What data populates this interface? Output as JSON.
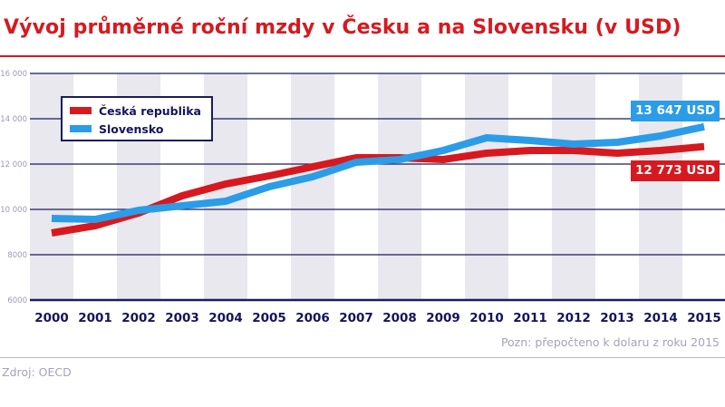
{
  "title": "Vývoj průměrné roční mzdy v Česku a na Slovensku (v USD)",
  "colors": {
    "title": "#d7191f",
    "cz": "#d7191f",
    "sk": "#2b9ce8",
    "axis": "#1c1c5e",
    "band": "#e8e8ee"
  },
  "legend": {
    "items": [
      {
        "label": "Česká republika",
        "color": "#d7191f"
      },
      {
        "label": "Slovensko",
        "color": "#2b9ce8"
      }
    ]
  },
  "end_labels": {
    "sk": "13 647 USD",
    "cz": "12 773 USD"
  },
  "note": "Pozn: přepočteno k dolaru z roku 2015",
  "source": "Zdroj: OECD",
  "chart_data": {
    "type": "line",
    "title": "Vývoj průměrné roční mzdy v Česku a na Slovensku (v USD)",
    "xlabel": "",
    "ylabel": "",
    "x": [
      "2000",
      "2001",
      "2002",
      "2003",
      "2004",
      "2005",
      "2006",
      "2007",
      "2008",
      "2009",
      "2010",
      "2011",
      "2012",
      "2013",
      "2014",
      "2015"
    ],
    "y_ticks": [
      "6000",
      "8000",
      "10 000",
      "12 000",
      "14 000",
      "16 000"
    ],
    "ylim": [
      6000,
      16000
    ],
    "grid": true,
    "legend_position": "upper-left",
    "series": [
      {
        "name": "Česká republika",
        "color": "#d7191f",
        "values": [
          8960,
          9280,
          9840,
          10600,
          11120,
          11480,
          11880,
          12280,
          12280,
          12200,
          12480,
          12600,
          12600,
          12480,
          12600,
          12773
        ]
      },
      {
        "name": "Slovensko",
        "color": "#2b9ce8",
        "values": [
          9600,
          9560,
          9960,
          10160,
          10360,
          11000,
          11440,
          12080,
          12200,
          12600,
          13160,
          13040,
          12880,
          12960,
          13240,
          13647
        ]
      }
    ],
    "annotations": [
      {
        "text": "13 647 USD",
        "series": "Slovensko",
        "x": "2015"
      },
      {
        "text": "12 773 USD",
        "series": "Česká republika",
        "x": "2015"
      },
      {
        "text": "Pozn: přepočteno k dolaru z roku 2015"
      }
    ],
    "source": "Zdroj: OECD"
  }
}
